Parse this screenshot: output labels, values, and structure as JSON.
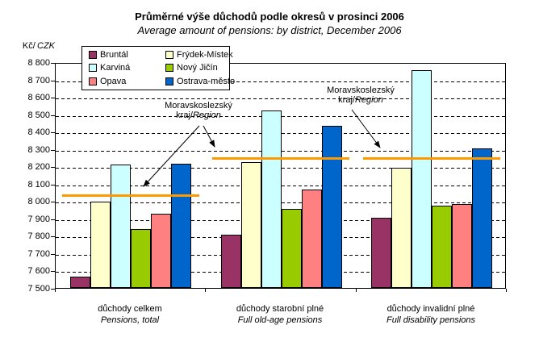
{
  "title": "Průměrné výše důchodů podle okresů v prosinci 2006",
  "subtitle": "Average amount of pensions: by district, December 2006",
  "y_axis": {
    "unit_prefix": "Kč/",
    "unit_suffix": "CZK",
    "tick_labels": [
      "7 500",
      "7 600",
      "7 700",
      "7 800",
      "7 900",
      "8 000",
      "8 100",
      "8 200",
      "8 300",
      "8 400",
      "8 500",
      "8 600",
      "8 700",
      "8 800"
    ]
  },
  "chart_data": {
    "type": "bar",
    "title": "Průměrné výše důchodů podle okresů v prosinci 2006",
    "subtitle": "Average amount of pensions: by district, December 2006",
    "ylabel": "Kč/CZK",
    "ylim": [
      7500,
      8800
    ],
    "ytick_step": 100,
    "grid": true,
    "legend_position": "top-left-inside",
    "categories": [
      {
        "label_cs": "důchody celkem",
        "label_en": "Pensions, total"
      },
      {
        "label_cs": "důchody starobní plné",
        "label_en": "Full old-age pensions"
      },
      {
        "label_cs": "důchody invalidní plné",
        "label_en": "Full disability pensions"
      }
    ],
    "series": [
      {
        "name": "Bruntál",
        "color": "#993366",
        "values": [
          7565,
          7805,
          7905
        ]
      },
      {
        "name": "Frýdek-Místek",
        "color": "#FFFFCC",
        "values": [
          7995,
          8225,
          8190
        ]
      },
      {
        "name": "Karviná",
        "color": "#CCFFFF",
        "values": [
          8210,
          8520,
          8755
        ]
      },
      {
        "name": "Nový Jičín",
        "color": "#99CC00",
        "values": [
          7840,
          7955,
          7975
        ]
      },
      {
        "name": "Opava",
        "color": "#FF8080",
        "values": [
          7925,
          8065,
          7985
        ]
      },
      {
        "name": "Ostrava-město",
        "color": "#0066CC",
        "values": [
          8215,
          8435,
          8305
        ]
      }
    ],
    "region_line": {
      "label_cs": "Moravskoslezský kraj",
      "label_en": "Region",
      "color": "#FF9900",
      "values": [
        8040,
        8255,
        8255
      ]
    }
  },
  "annotations": [
    {
      "line1": "Moravskoslezský",
      "line2_prefix": "kraj/",
      "line2_italic": "Region"
    },
    {
      "line1": "Moravskoslezský",
      "line2_prefix": "kraj/",
      "line2_italic": "Region"
    }
  ]
}
